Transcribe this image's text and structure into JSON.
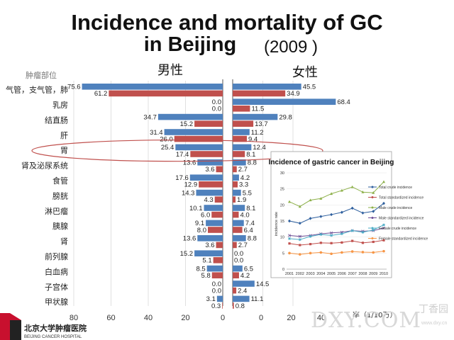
{
  "title": {
    "line1": "Incidence and mortality of GC",
    "line2": "in Beijing",
    "year": "(2009 )"
  },
  "headers": {
    "column_label": "肿瘤部位",
    "male": "男性",
    "female": "女性"
  },
  "unit_label": "率（1/10万）",
  "watermark": "DXY.COM",
  "watermark_small": "丁香园",
  "watermark_url": "www.dxy.cn",
  "logo": {
    "name": "北京大学肿瘤医院",
    "sub": "BEIJING CANCER HOSPITAL"
  },
  "colors": {
    "blue": "#4F81BD",
    "red": "#C0504D",
    "highlight": "#C0504D"
  },
  "chart_data": [
    {
      "type": "bar",
      "orientation": "horizontal-butterfly",
      "categories": [
        "气管，支气管，肺",
        "乳房",
        "结直肠",
        "肝",
        "胃",
        "肾及泌尿系统",
        "食管",
        "膀胱",
        "淋巴瘤",
        "胰腺",
        "肾",
        "前列腺",
        "白血病",
        "子宫体",
        "甲状腺"
      ],
      "highlighted_category": "胃",
      "panels": [
        {
          "name": "男性",
          "direction": "left",
          "xlim": [
            0,
            80
          ],
          "ticks": [
            "80",
            "60",
            "40",
            "20",
            "0"
          ],
          "series": [
            {
              "color": "#4F81BD",
              "values": [
                75.6,
                0.0,
                34.7,
                31.4,
                25.4,
                13.6,
                17.6,
                14.3,
                10.1,
                9.1,
                13.6,
                15.2,
                8.5,
                0.0,
                3.1
              ],
              "labels": [
                "75.6",
                "0.0",
                "34.7",
                "31.4",
                "25.4",
                "13.6",
                "17.6",
                "14.3",
                "10.1",
                "9.1",
                "13.6",
                "15.2",
                "8.5",
                "0.0",
                "3.1"
              ]
            },
            {
              "color": "#C0504D",
              "values": [
                61.2,
                0.0,
                15.2,
                26.0,
                17.4,
                3.6,
                12.9,
                4.3,
                6.0,
                8.0,
                3.6,
                5.1,
                5.8,
                0.0,
                0.3
              ],
              "labels": [
                "61.2",
                "0.0",
                "15.2",
                "26.0",
                "17.4",
                "3.6",
                "12.9",
                "4.3",
                "6.0",
                "8.0",
                "3.6",
                "5.1",
                "5.8",
                "0.0",
                "0.3"
              ]
            }
          ]
        },
        {
          "name": "女性",
          "direction": "right",
          "xlim": [
            0,
            80
          ],
          "ticks": [
            "0",
            "20",
            "40"
          ],
          "series": [
            {
              "color": "#4F81BD",
              "values": [
                45.5,
                68.4,
                29.8,
                11.2,
                12.4,
                8.8,
                4.2,
                5.5,
                8.1,
                7.4,
                8.8,
                0.0,
                6.5,
                14.5,
                11.1
              ],
              "labels": [
                "45.5",
                "68.4",
                "29.8",
                "11.2",
                "12.4",
                "8.8",
                "4.2",
                "5.5",
                "8.1",
                "7.4",
                "8.8",
                "0.0",
                "6.5",
                "14.5",
                "11.1"
              ]
            },
            {
              "color": "#C0504D",
              "values": [
                34.9,
                11.5,
                13.7,
                9.4,
                8.1,
                2.7,
                3.3,
                1.9,
                4.0,
                6.4,
                2.7,
                0.0,
                4.2,
                2.4,
                0.8
              ],
              "labels": [
                "34.9",
                "11.5",
                "13.7",
                "9.4",
                "8.1",
                "2.7",
                "3.3",
                "1.9",
                "4.0",
                "6.4",
                "2.7",
                "0.0",
                "4.2",
                "2.4",
                "0.8"
              ]
            }
          ]
        }
      ]
    },
    {
      "type": "line",
      "title": "Incidence of gastric cancer in Beijing",
      "ylabel": "incidence rate",
      "x": [
        2001,
        2002,
        2003,
        2004,
        2005,
        2006,
        2007,
        2008,
        2009,
        2010
      ],
      "x_labels": [
        "2001",
        "2002",
        "2003",
        "2004",
        "2005",
        "2006",
        "2007",
        "2008",
        "2009",
        "2010"
      ],
      "ylim": [
        0,
        30
      ],
      "yticks": [
        "0",
        "5",
        "10",
        "15",
        "20",
        "25",
        "30"
      ],
      "series": [
        {
          "name": "Total  crude incidence",
          "color": "#2E5F9E",
          "marker": "diamond",
          "values": [
            15,
            14.3,
            15.8,
            16.4,
            17,
            17.7,
            19,
            17.5,
            18,
            20.5
          ]
        },
        {
          "name": "Total  standardized incidence",
          "color": "#C0504D",
          "marker": "square",
          "values": [
            8,
            7.5,
            7.8,
            8.2,
            8.1,
            8.3,
            8.8,
            8.2,
            8.5,
            9
          ]
        },
        {
          "name": "Male  crude incidence",
          "color": "#8DB04A",
          "marker": "triangle",
          "values": [
            21,
            19.5,
            21.5,
            22,
            23.5,
            24.5,
            25.6,
            24,
            23.8,
            27.2
          ]
        },
        {
          "name": "Male  standardized incidence",
          "color": "#6E4F96",
          "marker": "x",
          "values": [
            10.5,
            10.2,
            10.5,
            11,
            11.3,
            11.5,
            12,
            11.8,
            12,
            12.8
          ]
        },
        {
          "name": "Female  crude incidence",
          "color": "#4BACC6",
          "marker": "star",
          "values": [
            9.5,
            9.2,
            10.2,
            10.8,
            10.5,
            11,
            12,
            11.5,
            12.2,
            13.8
          ]
        },
        {
          "name": "Female  standardized incidence",
          "color": "#F79646",
          "marker": "circle",
          "values": [
            5,
            4.6,
            5,
            5.2,
            4.8,
            5.2,
            5.5,
            5.3,
            5.2,
            5.6
          ]
        }
      ]
    }
  ]
}
